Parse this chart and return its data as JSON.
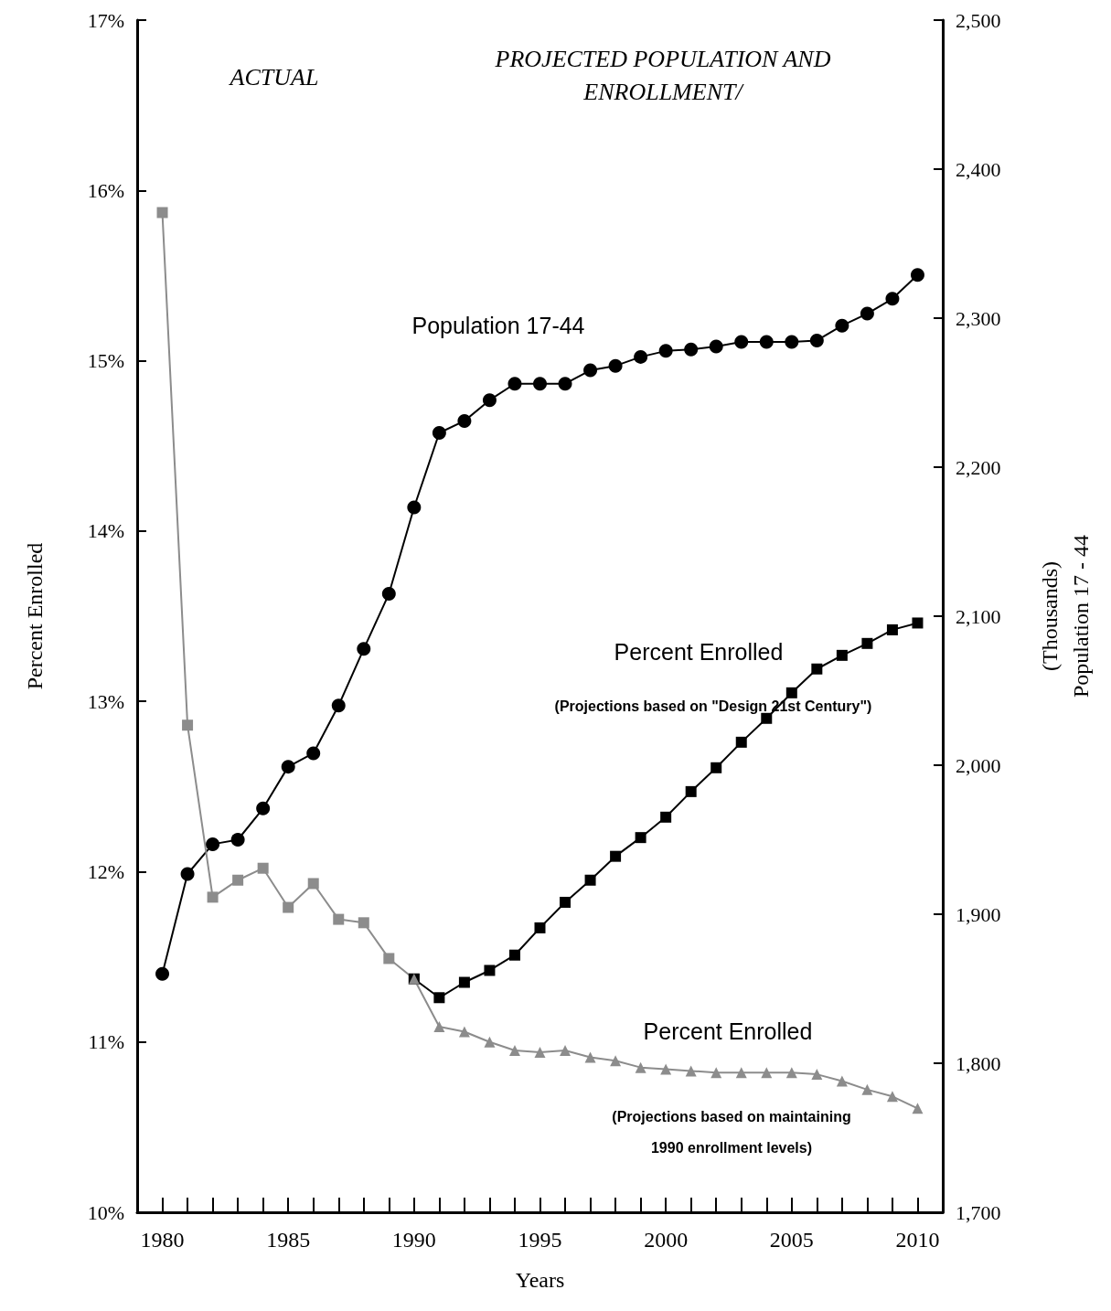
{
  "chart_data": {
    "type": "line",
    "xlabel": "Years",
    "ylabel": "Percent Enrolled",
    "y2label": "(Thousands)\nPopulation 17 - 44",
    "x": [
      1980,
      1981,
      1982,
      1983,
      1984,
      1985,
      1986,
      1987,
      1988,
      1989,
      1990,
      1991,
      1992,
      1993,
      1994,
      1995,
      1996,
      1997,
      1998,
      1999,
      2000,
      2001,
      2002,
      2003,
      2004,
      2005,
      2006,
      2007,
      2008,
      2009,
      2010
    ],
    "series": [
      {
        "color": "#000000",
        "marker": "circle",
        "axis": "y2",
        "values": [
          1860,
          1927,
          1947,
          1950,
          1971,
          1999,
          2008,
          2040,
          2078,
          2115,
          2173,
          2223,
          2231,
          2245,
          2256,
          2256,
          2256,
          2265,
          2268,
          2274,
          2278,
          2279,
          2281,
          2284,
          2284,
          2284,
          2285,
          2295,
          2303,
          2313,
          2329
        ]
      },
      {
        "color": "#8c8c8c",
        "marker": "square",
        "values": [
          15.87,
          12.86,
          11.85,
          11.95,
          12.02,
          11.79,
          11.93,
          11.72,
          11.7,
          11.49,
          11.37,
          null,
          null,
          null,
          null,
          null,
          null,
          null,
          null,
          null,
          null,
          null,
          null,
          null,
          null,
          null,
          null,
          null,
          null,
          null,
          null
        ]
      },
      {
        "color": "#000000",
        "marker": "square",
        "values": [
          null,
          null,
          null,
          null,
          null,
          null,
          null,
          null,
          null,
          null,
          11.37,
          11.26,
          11.35,
          11.42,
          11.51,
          11.67,
          11.82,
          11.95,
          12.09,
          12.2,
          12.32,
          12.47,
          12.61,
          12.76,
          12.9,
          13.05,
          13.19,
          13.27,
          13.34,
          13.42,
          13.46
        ]
      },
      {
        "color": "#8c8c8c",
        "marker": "triangle",
        "values": [
          null,
          null,
          null,
          null,
          null,
          null,
          null,
          null,
          null,
          null,
          11.37,
          11.09,
          11.06,
          11.0,
          10.95,
          10.94,
          10.95,
          10.91,
          10.89,
          10.85,
          10.84,
          10.83,
          10.82,
          10.82,
          10.82,
          10.82,
          10.81,
          10.77,
          10.72,
          10.68,
          10.61
        ]
      }
    ],
    "xlim": [
      1979,
      2011
    ],
    "xticks": [
      1980,
      {
        "value": 1981,
        "label": null
      },
      {
        "value": 1982,
        "label": null
      },
      {
        "value": 1983,
        "label": null
      },
      {
        "value": 1984,
        "label": null
      },
      1985,
      {
        "value": 1986,
        "label": null
      },
      {
        "value": 1987,
        "label": null
      },
      {
        "value": 1988,
        "label": null
      },
      {
        "value": 1989,
        "label": null
      },
      1990,
      {
        "value": 1991,
        "label": null
      },
      {
        "value": 1992,
        "label": null
      },
      {
        "value": 1993,
        "label": null
      },
      {
        "value": 1994,
        "label": null
      },
      1995,
      {
        "value": 1996,
        "label": null
      },
      {
        "value": 1997,
        "label": null
      },
      {
        "value": 1998,
        "label": null
      },
      {
        "value": 1999,
        "label": null
      },
      2000,
      {
        "value": 2001,
        "label": null
      },
      {
        "value": 2002,
        "label": null
      },
      {
        "value": 2003,
        "label": null
      },
      {
        "value": 2004,
        "label": null
      },
      2005,
      {
        "value": 2006,
        "label": null
      },
      {
        "value": 2007,
        "label": null
      },
      {
        "value": 2008,
        "label": null
      },
      {
        "value": 2009,
        "label": null
      },
      2010
    ],
    "ylim": [
      10,
      17
    ],
    "yticks": [
      {
        "value": 10,
        "label": "10%"
      },
      {
        "value": 11,
        "label": "11%"
      },
      {
        "value": 12,
        "label": "12%"
      },
      {
        "value": 13,
        "label": "13%"
      },
      {
        "value": 14,
        "label": "14%"
      },
      {
        "value": 15,
        "label": "15%"
      },
      {
        "value": 16,
        "label": "16%"
      },
      {
        "value": 17,
        "label": "17%"
      }
    ],
    "y2lim": [
      1700,
      2500
    ],
    "y2ticks": [
      {
        "value": 1700,
        "label": "1,700"
      },
      {
        "value": 1800,
        "label": "1,800"
      },
      {
        "value": 1900,
        "label": "1,900"
      },
      {
        "value": 2000,
        "label": "2,000"
      },
      {
        "value": 2100,
        "label": "2,100"
      },
      {
        "value": 2200,
        "label": "2,200"
      },
      {
        "value": 2300,
        "label": "2,300"
      },
      {
        "value": 2400,
        "label": "2,400"
      },
      {
        "value": 2500,
        "label": "2,500"
      }
    ],
    "grid": false,
    "line_style": "solid",
    "annotations": [
      "ACTUAL",
      "PROJECTED POPULATION AND\nENROLLMENT/",
      "Population 17-44",
      "Percent Enrolled",
      "(Projections based on \"Design 21st Century\")",
      "Percent Enrolled",
      "(Projections based on maintaining\n1990 enrollment levels)"
    ]
  }
}
